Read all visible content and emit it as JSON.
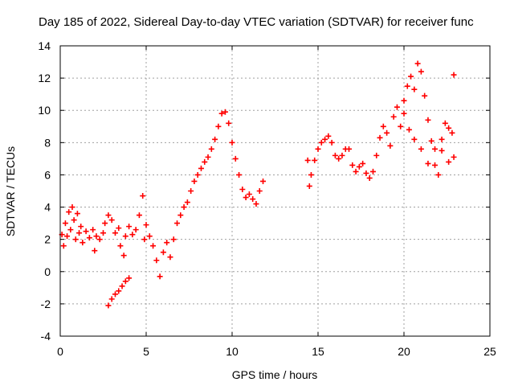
{
  "chart_data": {
    "type": "scatter",
    "title": "Day 185 of 2022, Sidereal Day-to-day VTEC variation (SDTVAR) for receiver func",
    "xlabel": "GPS time / hours",
    "ylabel": "SDTVAR / TECUs",
    "xlim": [
      0,
      25
    ],
    "ylim": [
      -4,
      14
    ],
    "xticks": [
      "0",
      "5",
      "10",
      "15",
      "20",
      "25"
    ],
    "yticks": [
      "-4",
      "-2",
      "0",
      "2",
      "4",
      "6",
      "8",
      "10",
      "12",
      "14"
    ],
    "grid": true,
    "marker": "plus",
    "color": "#ff0000",
    "series": [
      {
        "name": "SDTVAR",
        "points": [
          [
            0.1,
            2.3
          ],
          [
            0.2,
            1.6
          ],
          [
            0.3,
            3.0
          ],
          [
            0.4,
            2.2
          ],
          [
            0.5,
            3.7
          ],
          [
            0.6,
            2.6
          ],
          [
            0.7,
            4.0
          ],
          [
            0.8,
            3.2
          ],
          [
            0.9,
            2.0
          ],
          [
            1.0,
            3.6
          ],
          [
            1.1,
            2.4
          ],
          [
            1.2,
            2.8
          ],
          [
            1.3,
            1.8
          ],
          [
            1.5,
            2.5
          ],
          [
            1.7,
            2.1
          ],
          [
            1.9,
            2.6
          ],
          [
            2.0,
            1.3
          ],
          [
            2.1,
            2.2
          ],
          [
            2.3,
            2.0
          ],
          [
            2.5,
            2.4
          ],
          [
            2.6,
            3.0
          ],
          [
            2.8,
            3.5
          ],
          [
            3.0,
            3.2
          ],
          [
            3.2,
            2.4
          ],
          [
            3.4,
            2.7
          ],
          [
            3.5,
            1.6
          ],
          [
            3.7,
            1.0
          ],
          [
            3.8,
            2.2
          ],
          [
            4.0,
            2.8
          ],
          [
            4.2,
            2.3
          ],
          [
            4.4,
            2.6
          ],
          [
            4.6,
            3.5
          ],
          [
            4.8,
            4.7
          ],
          [
            4.9,
            2.0
          ],
          [
            5.0,
            2.9
          ],
          [
            5.2,
            2.2
          ],
          [
            5.4,
            1.6
          ],
          [
            5.6,
            0.7
          ],
          [
            5.8,
            -0.3
          ],
          [
            6.0,
            1.2
          ],
          [
            6.2,
            1.8
          ],
          [
            6.4,
            0.9
          ],
          [
            6.6,
            2.0
          ],
          [
            6.8,
            3.0
          ],
          [
            7.0,
            3.5
          ],
          [
            7.2,
            4.0
          ],
          [
            7.4,
            4.3
          ],
          [
            7.6,
            5.0
          ],
          [
            7.8,
            5.6
          ],
          [
            8.0,
            6.0
          ],
          [
            8.2,
            6.4
          ],
          [
            8.4,
            6.8
          ],
          [
            8.6,
            7.1
          ],
          [
            8.8,
            7.6
          ],
          [
            9.0,
            8.2
          ],
          [
            9.2,
            9.0
          ],
          [
            9.4,
            9.8
          ],
          [
            9.6,
            9.9
          ],
          [
            9.8,
            9.2
          ],
          [
            10.0,
            8.0
          ],
          [
            10.2,
            7.0
          ],
          [
            10.4,
            6.0
          ],
          [
            10.6,
            5.1
          ],
          [
            10.8,
            4.6
          ],
          [
            11.0,
            4.8
          ],
          [
            11.2,
            4.5
          ],
          [
            11.4,
            4.2
          ],
          [
            11.6,
            5.0
          ],
          [
            11.8,
            5.6
          ],
          [
            2.8,
            -2.1
          ],
          [
            3.0,
            -1.7
          ],
          [
            3.2,
            -1.4
          ],
          [
            3.4,
            -1.2
          ],
          [
            3.6,
            -0.9
          ],
          [
            3.8,
            -0.6
          ],
          [
            4.0,
            -0.4
          ],
          [
            14.4,
            6.9
          ],
          [
            14.5,
            5.3
          ],
          [
            14.6,
            6.0
          ],
          [
            14.8,
            6.9
          ],
          [
            15.0,
            7.6
          ],
          [
            15.2,
            8.0
          ],
          [
            15.4,
            8.2
          ],
          [
            15.6,
            8.4
          ],
          [
            15.8,
            8.0
          ],
          [
            16.0,
            7.2
          ],
          [
            16.2,
            7.0
          ],
          [
            16.4,
            7.2
          ],
          [
            16.6,
            7.6
          ],
          [
            16.8,
            7.6
          ],
          [
            17.0,
            6.6
          ],
          [
            17.2,
            6.2
          ],
          [
            17.4,
            6.5
          ],
          [
            17.6,
            6.7
          ],
          [
            17.8,
            6.1
          ],
          [
            18.0,
            5.8
          ],
          [
            18.2,
            6.2
          ],
          [
            18.4,
            7.2
          ],
          [
            18.6,
            8.3
          ],
          [
            18.8,
            9.0
          ],
          [
            19.0,
            8.6
          ],
          [
            19.2,
            7.8
          ],
          [
            19.4,
            9.6
          ],
          [
            19.6,
            10.2
          ],
          [
            19.8,
            9.0
          ],
          [
            20.0,
            10.6
          ],
          [
            20.2,
            11.5
          ],
          [
            20.4,
            12.1
          ],
          [
            20.6,
            11.3
          ],
          [
            20.8,
            12.9
          ],
          [
            21.0,
            12.4
          ],
          [
            21.2,
            10.9
          ],
          [
            21.4,
            9.4
          ],
          [
            21.6,
            8.1
          ],
          [
            21.8,
            6.6
          ],
          [
            22.0,
            6.0
          ],
          [
            22.2,
            7.5
          ],
          [
            22.4,
            9.2
          ],
          [
            22.6,
            6.8
          ],
          [
            22.8,
            8.6
          ],
          [
            22.9,
            7.1
          ],
          [
            22.9,
            12.2
          ],
          [
            20.0,
            9.8
          ],
          [
            20.3,
            8.8
          ],
          [
            20.6,
            8.2
          ],
          [
            21.0,
            7.6
          ],
          [
            21.4,
            6.7
          ],
          [
            21.8,
            7.6
          ],
          [
            22.2,
            8.2
          ],
          [
            22.6,
            8.9
          ]
        ]
      }
    ]
  }
}
